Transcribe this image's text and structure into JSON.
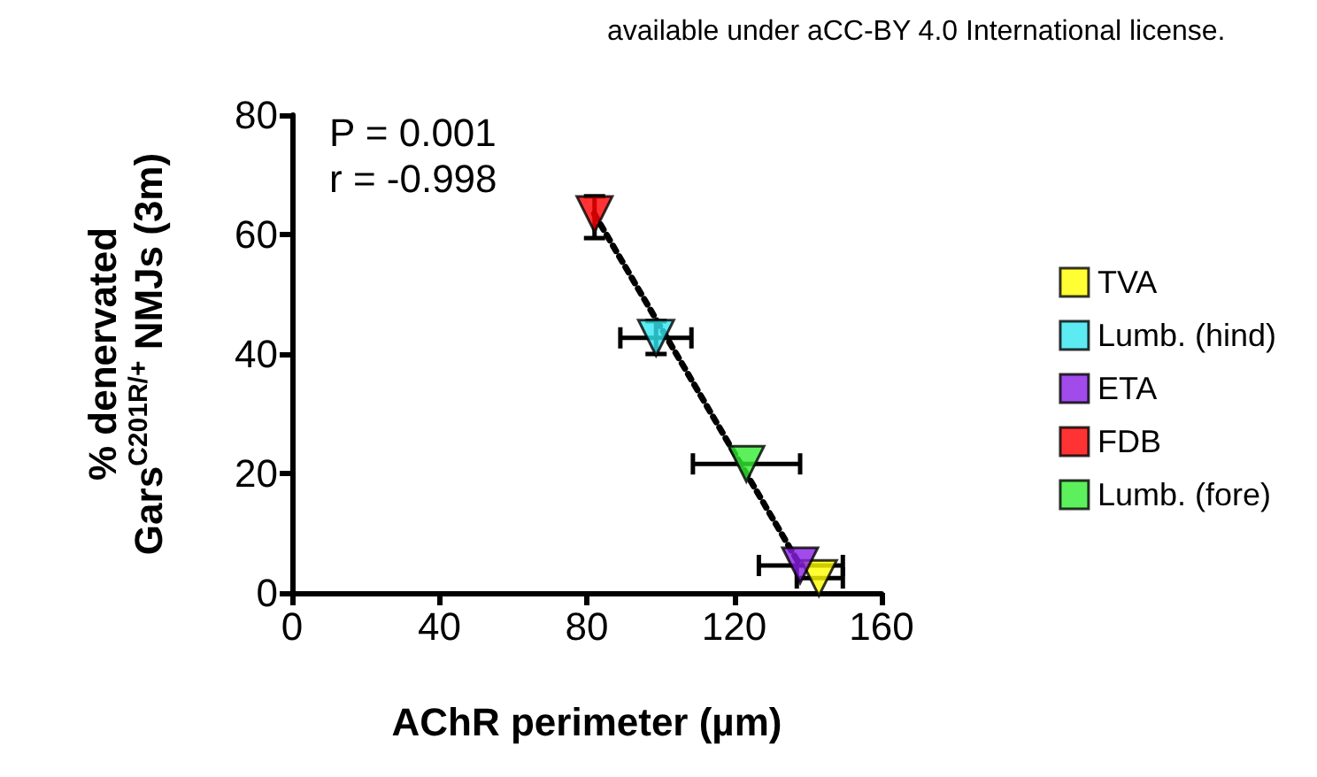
{
  "chart_data": {
    "type": "scatter",
    "xlabel": "AChR perimeter (µm)",
    "ylabel": "% denervated\nGars$^{C201R/+}$ NMJs (3m)",
    "annotations": [
      "available under aCC-BY 4.0 International license.",
      "P = 0.001",
      "r = -0.998"
    ],
    "xlim": [
      0,
      160
    ],
    "xticks": [
      0,
      40,
      80,
      120,
      160
    ],
    "ylim": [
      0,
      80
    ],
    "yticks": [
      0,
      20,
      40,
      60,
      80
    ],
    "grid": false,
    "legend": "right",
    "marker": "triangle",
    "series": [
      {
        "name": "TVA",
        "color": "#ffff00",
        "x": [
          143
        ],
        "values": [
          2.5
        ],
        "errors": [
          null
        ],
        "xerrors": [
          [
            137,
            149.5
          ]
        ]
      },
      {
        "name": "Lumb. (hind)",
        "color": "#33e6f0",
        "x": [
          98.8
        ],
        "values": [
          42.7
        ],
        "errors": [
          [
            40,
            45.5
          ]
        ],
        "xerrors": [
          [
            89.1,
            108.4
          ]
        ]
      },
      {
        "name": "ETA",
        "color": "#8a1ee6",
        "x": [
          137.9
        ],
        "values": [
          4.6
        ],
        "errors": [
          null
        ],
        "xerrors": [
          [
            126.7,
            149.5
          ]
        ]
      },
      {
        "name": "FDB",
        "color": "#ff0000",
        "x": [
          82.1
        ],
        "values": [
          63.4
        ],
        "errors": [
          [
            59.4,
            66.4
          ]
        ],
        "xerrors": [
          null
        ]
      },
      {
        "name": "Lumb. (fore)",
        "color": "#33ee33",
        "x": [
          123.3
        ],
        "values": [
          21.6
        ],
        "errors": [
          null
        ],
        "xerrors": [
          [
            108.8,
            137.9
          ]
        ]
      },
      {
        "type": "line",
        "color": "#000000",
        "x": [
          82,
          138
        ],
        "values": [
          63.5,
          4.5
        ],
        "line_style": "dotted",
        "marker": "none"
      }
    ]
  }
}
